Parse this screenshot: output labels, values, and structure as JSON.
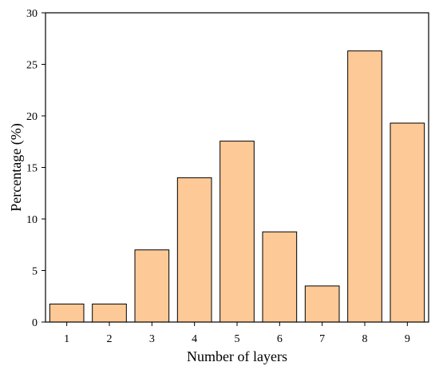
{
  "chart_data": {
    "type": "bar",
    "categories": [
      "1",
      "2",
      "3",
      "4",
      "5",
      "6",
      "7",
      "8",
      "9"
    ],
    "values": [
      1.75,
      1.75,
      7.0,
      14.0,
      17.55,
      8.75,
      3.5,
      26.3,
      19.3
    ],
    "xlabel": "Number of layers",
    "ylabel": "Percentage (%)",
    "ylim": [
      0,
      30
    ],
    "yticks": [
      "0",
      "5",
      "10",
      "15",
      "20",
      "25",
      "30"
    ],
    "grid": false,
    "colors": {
      "bar_fill": "#FDC996",
      "bar_stroke": "#000000"
    }
  }
}
